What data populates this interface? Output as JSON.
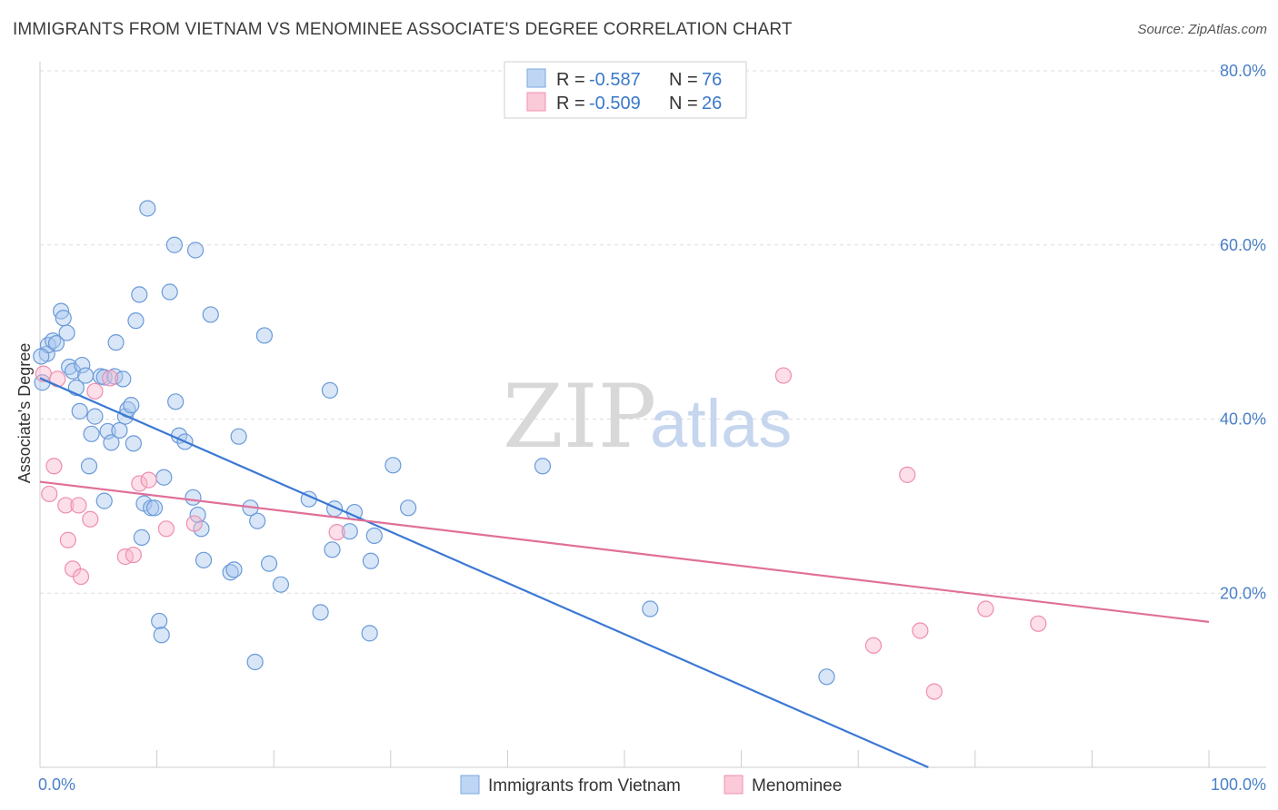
{
  "header": {
    "title": "IMMIGRANTS FROM VIETNAM VS MENOMINEE ASSOCIATE'S DEGREE CORRELATION CHART",
    "source": "Source: ZipAtlas.com"
  },
  "watermark": {
    "zip": "ZIP",
    "atlas": "atlas"
  },
  "legend": {
    "rows": [
      {
        "r_label": "R =",
        "r_value": "-0.587",
        "n_label": "N =",
        "n_value": "76",
        "color": "#a8c8f0"
      },
      {
        "r_label": "R =",
        "r_value": "-0.509",
        "n_label": "N =",
        "n_value": "26",
        "color": "#f8b8cc"
      }
    ]
  },
  "bottom_legend": {
    "items": [
      {
        "label": "Immigrants from Vietnam",
        "color": "#a8c8f0"
      },
      {
        "label": "Menominee",
        "color": "#f8b8cc"
      }
    ]
  },
  "chart_data": {
    "type": "scatter",
    "title": "IMMIGRANTS FROM VIETNAM VS MENOMINEE ASSOCIATE'S DEGREE CORRELATION CHART",
    "ylabel": "Associate's Degree",
    "xlabel": "",
    "xlim": [
      0,
      100
    ],
    "ylim": [
      0,
      80
    ],
    "x_tick_labels": [
      "0.0%",
      "100.0%"
    ],
    "y_ticks": [
      20,
      40,
      60,
      80
    ],
    "y_tick_labels": [
      "20.0%",
      "40.0%",
      "60.0%",
      "80.0%"
    ],
    "grid": true,
    "legend_position": "top-center",
    "colors": {
      "vietnam": "#a8c8f0",
      "vietnam_line": "#3a78d4",
      "menominee": "#f8b8cc",
      "menominee_line": "#e07098"
    },
    "series": [
      {
        "name": "Immigrants from Vietnam",
        "trend": {
          "x": [
            0,
            76
          ],
          "y": [
            44.7,
            0
          ]
        },
        "points": [
          [
            0.2,
            44.2
          ],
          [
            0.6,
            47.5
          ],
          [
            0.7,
            48.5
          ],
          [
            1.1,
            49.0
          ],
          [
            1.4,
            48.7
          ],
          [
            1.8,
            52.4
          ],
          [
            2.0,
            51.6
          ],
          [
            2.3,
            49.9
          ],
          [
            2.5,
            46.0
          ],
          [
            2.8,
            45.5
          ],
          [
            3.1,
            43.6
          ],
          [
            3.4,
            40.9
          ],
          [
            3.6,
            46.2
          ],
          [
            3.9,
            45.0
          ],
          [
            4.2,
            34.6
          ],
          [
            4.4,
            38.3
          ],
          [
            4.7,
            40.3
          ],
          [
            5.2,
            44.9
          ],
          [
            5.5,
            44.8
          ],
          [
            5.5,
            30.6
          ],
          [
            5.8,
            38.6
          ],
          [
            6.1,
            37.3
          ],
          [
            6.4,
            44.9
          ],
          [
            6.5,
            48.8
          ],
          [
            6.8,
            38.7
          ],
          [
            7.1,
            44.6
          ],
          [
            7.3,
            40.3
          ],
          [
            7.5,
            41.1
          ],
          [
            7.8,
            41.6
          ],
          [
            8.0,
            37.2
          ],
          [
            8.2,
            51.3
          ],
          [
            8.5,
            54.3
          ],
          [
            8.7,
            26.4
          ],
          [
            8.9,
            30.3
          ],
          [
            9.2,
            64.2
          ],
          [
            9.5,
            29.8
          ],
          [
            9.8,
            29.8
          ],
          [
            10.2,
            16.8
          ],
          [
            10.4,
            15.2
          ],
          [
            10.6,
            33.3
          ],
          [
            11.1,
            54.6
          ],
          [
            11.5,
            60.0
          ],
          [
            11.6,
            42.0
          ],
          [
            11.9,
            38.1
          ],
          [
            12.4,
            37.4
          ],
          [
            13.1,
            31.0
          ],
          [
            13.3,
            59.4
          ],
          [
            13.5,
            29.0
          ],
          [
            13.8,
            27.4
          ],
          [
            14.0,
            23.8
          ],
          [
            14.6,
            52.0
          ],
          [
            16.3,
            22.4
          ],
          [
            16.6,
            22.7
          ],
          [
            17.0,
            38.0
          ],
          [
            18.0,
            29.8
          ],
          [
            18.4,
            12.1
          ],
          [
            18.6,
            28.3
          ],
          [
            19.2,
            49.6
          ],
          [
            19.6,
            23.4
          ],
          [
            20.6,
            21.0
          ],
          [
            23.0,
            30.8
          ],
          [
            24.0,
            17.8
          ],
          [
            24.8,
            43.3
          ],
          [
            25.0,
            25.0
          ],
          [
            25.2,
            29.7
          ],
          [
            26.5,
            27.1
          ],
          [
            26.9,
            29.3
          ],
          [
            28.2,
            15.4
          ],
          [
            28.3,
            23.7
          ],
          [
            28.6,
            26.6
          ],
          [
            30.2,
            34.7
          ],
          [
            31.5,
            29.8
          ],
          [
            43.0,
            34.6
          ],
          [
            52.2,
            18.2
          ],
          [
            67.3,
            10.4
          ],
          [
            0.1,
            47.2
          ]
        ]
      },
      {
        "name": "Menominee",
        "trend": {
          "x": [
            0,
            100
          ],
          "y": [
            32.8,
            16.7
          ]
        },
        "points": [
          [
            0.3,
            45.2
          ],
          [
            0.8,
            31.4
          ],
          [
            1.2,
            34.6
          ],
          [
            1.5,
            44.6
          ],
          [
            2.2,
            30.1
          ],
          [
            2.4,
            26.1
          ],
          [
            2.8,
            22.8
          ],
          [
            3.3,
            30.1
          ],
          [
            3.5,
            21.9
          ],
          [
            4.3,
            28.5
          ],
          [
            4.7,
            43.2
          ],
          [
            6.0,
            44.7
          ],
          [
            7.3,
            24.2
          ],
          [
            8.0,
            24.4
          ],
          [
            8.5,
            32.6
          ],
          [
            9.3,
            33.0
          ],
          [
            10.8,
            27.4
          ],
          [
            13.2,
            28.0
          ],
          [
            25.4,
            27.0
          ],
          [
            63.6,
            45.0
          ],
          [
            71.3,
            14.0
          ],
          [
            74.2,
            33.6
          ],
          [
            75.3,
            15.7
          ],
          [
            76.5,
            8.7
          ],
          [
            80.9,
            18.2
          ],
          [
            85.4,
            16.5
          ]
        ]
      }
    ]
  }
}
